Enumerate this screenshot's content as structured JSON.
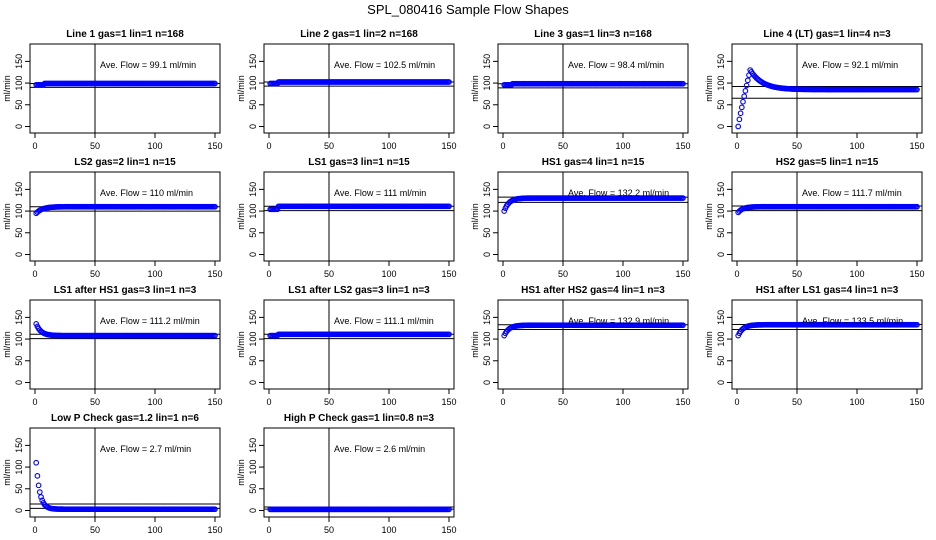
{
  "figure": {
    "title": "SPL_080416  Sample Flow Shapes"
  },
  "style": {
    "point_color": "#0000ff",
    "axis_color": "#000000"
  },
  "chart_data": [
    {
      "type": "scatter",
      "title": "Line 1 gas=1 lin=1 n=168",
      "ylabel": "ml/min",
      "xlim": [
        0,
        150
      ],
      "ylim": [
        -15,
        190
      ],
      "xticks": [
        0,
        50,
        100,
        150
      ],
      "yticks": [
        0,
        50,
        100,
        150
      ],
      "vline": 50,
      "hlines": [
        99.1,
        90
      ],
      "annotation": "Ave. Flow =  99.1  ml/min",
      "shape": "flat",
      "params": [
        99.1,
        96,
        0
      ]
    },
    {
      "type": "scatter",
      "title": "Line 2 gas=1 lin=2 n=168",
      "ylabel": "ml/min",
      "xlim": [
        0,
        150
      ],
      "ylim": [
        -15,
        190
      ],
      "xticks": [
        0,
        50,
        100,
        150
      ],
      "yticks": [
        0,
        50,
        100,
        150
      ],
      "vline": 50,
      "hlines": [
        102.5,
        93
      ],
      "annotation": "Ave. Flow =  102.5  ml/min",
      "shape": "flat",
      "params": [
        102.5,
        99,
        0
      ]
    },
    {
      "type": "scatter",
      "title": "Line 3 gas=1 lin=3 n=168",
      "ylabel": "ml/min",
      "xlim": [
        0,
        150
      ],
      "ylim": [
        -15,
        190
      ],
      "xticks": [
        0,
        50,
        100,
        150
      ],
      "yticks": [
        0,
        50,
        100,
        150
      ],
      "vline": 50,
      "hlines": [
        98.4,
        89
      ],
      "annotation": "Ave. Flow =  98.4  ml/min",
      "shape": "flat",
      "params": [
        98.4,
        96,
        0
      ]
    },
    {
      "type": "scatter",
      "title": "Line 4 (LT) gas=1 lin=4 n=3",
      "ylabel": "ml/min",
      "xlim": [
        0,
        150
      ],
      "ylim": [
        -15,
        190
      ],
      "xticks": [
        0,
        50,
        100,
        150
      ],
      "yticks": [
        0,
        50,
        100,
        150
      ],
      "vline": 50,
      "hlines": [
        92.1,
        65
      ],
      "annotation": "Ave. Flow =  92.1  ml/min",
      "shape": "peak",
      "params": [
        85,
        0,
        130
      ]
    },
    {
      "type": "scatter",
      "title": "LS2 gas=2 lin=1 n=15",
      "ylabel": "ml/min",
      "xlim": [
        0,
        150
      ],
      "ylim": [
        -15,
        190
      ],
      "xticks": [
        0,
        50,
        100,
        150
      ],
      "yticks": [
        0,
        50,
        100,
        150
      ],
      "vline": 50,
      "hlines": [
        110,
        100
      ],
      "annotation": "Ave. Flow =  110  ml/min",
      "shape": "rise",
      "params": [
        110,
        95,
        5
      ]
    },
    {
      "type": "scatter",
      "title": "LS1 gas=3 lin=1 n=15",
      "ylabel": "ml/min",
      "xlim": [
        0,
        150
      ],
      "ylim": [
        -15,
        190
      ],
      "xticks": [
        0,
        50,
        100,
        150
      ],
      "yticks": [
        0,
        50,
        100,
        150
      ],
      "vline": 50,
      "hlines": [
        111,
        101
      ],
      "annotation": "Ave. Flow =  111  ml/min",
      "shape": "flat",
      "params": [
        111,
        104,
        0
      ]
    },
    {
      "type": "scatter",
      "title": "HS1 gas=4 lin=1 n=15",
      "ylabel": "ml/min",
      "xlim": [
        0,
        150
      ],
      "ylim": [
        -15,
        190
      ],
      "xticks": [
        0,
        50,
        100,
        150
      ],
      "yticks": [
        0,
        50,
        100,
        150
      ],
      "vline": 50,
      "hlines": [
        132.2,
        120
      ],
      "annotation": "Ave. Flow =  132.2  ml/min",
      "shape": "rise",
      "params": [
        130,
        100,
        4
      ]
    },
    {
      "type": "scatter",
      "title": "HS2 gas=5 lin=1 n=15",
      "ylabel": "ml/min",
      "xlim": [
        0,
        150
      ],
      "ylim": [
        -15,
        190
      ],
      "xticks": [
        0,
        50,
        100,
        150
      ],
      "yticks": [
        0,
        50,
        100,
        150
      ],
      "vline": 50,
      "hlines": [
        111.7,
        101
      ],
      "annotation": "Ave. Flow =  111.7  ml/min",
      "shape": "rise",
      "params": [
        110,
        97,
        4
      ]
    },
    {
      "type": "scatter",
      "title": "LS1 after HS1 gas=3 lin=1 n=3",
      "ylabel": "ml/min",
      "xlim": [
        0,
        150
      ],
      "ylim": [
        -15,
        190
      ],
      "xticks": [
        0,
        50,
        100,
        150
      ],
      "yticks": [
        0,
        50,
        100,
        150
      ],
      "vline": 50,
      "hlines": [
        111.2,
        101
      ],
      "annotation": "Ave. Flow =  111.2  ml/min",
      "shape": "decay",
      "params": [
        108,
        135,
        4
      ]
    },
    {
      "type": "scatter",
      "title": "LS1 after LS2 gas=3 lin=1 n=3",
      "ylabel": "ml/min",
      "xlim": [
        0,
        150
      ],
      "ylim": [
        -15,
        190
      ],
      "xticks": [
        0,
        50,
        100,
        150
      ],
      "yticks": [
        0,
        50,
        100,
        150
      ],
      "vline": 50,
      "hlines": [
        111.1,
        101
      ],
      "annotation": "Ave. Flow =  111.1  ml/min",
      "shape": "flat",
      "params": [
        111,
        108,
        0
      ]
    },
    {
      "type": "scatter",
      "title": "HS1 after HS2 gas=4 lin=1 n=3",
      "ylabel": "ml/min",
      "xlim": [
        0,
        150
      ],
      "ylim": [
        -15,
        190
      ],
      "xticks": [
        0,
        50,
        100,
        150
      ],
      "yticks": [
        0,
        50,
        100,
        150
      ],
      "vline": 50,
      "hlines": [
        132.9,
        122
      ],
      "annotation": "Ave. Flow =  132.9  ml/min",
      "shape": "rise",
      "params": [
        132,
        108,
        4
      ]
    },
    {
      "type": "scatter",
      "title": "HS1 after LS1 gas=4 lin=1 n=3",
      "ylabel": "ml/min",
      "xlim": [
        0,
        150
      ],
      "ylim": [
        -15,
        190
      ],
      "xticks": [
        0,
        50,
        100,
        150
      ],
      "yticks": [
        0,
        50,
        100,
        150
      ],
      "vline": 50,
      "hlines": [
        133.5,
        122
      ],
      "annotation": "Ave. Flow =  133.5  ml/min",
      "shape": "rise",
      "params": [
        133,
        108,
        4
      ]
    },
    {
      "type": "scatter",
      "title": "Low P Check gas=1.2 lin=1 n=6",
      "ylabel": "ml/min",
      "xlim": [
        0,
        150
      ],
      "ylim": [
        -15,
        190
      ],
      "xticks": [
        0,
        50,
        100,
        150
      ],
      "yticks": [
        0,
        50,
        100,
        150
      ],
      "vline": 50,
      "hlines": [
        15,
        5
      ],
      "annotation": "Ave. Flow =  2.7  ml/min",
      "shape": "decay",
      "params": [
        3,
        110,
        3
      ]
    },
    {
      "type": "scatter",
      "title": "High P Check gas=1 lin=0.8 n=3",
      "ylabel": "ml/min",
      "xlim": [
        0,
        150
      ],
      "ylim": [
        -15,
        190
      ],
      "xticks": [
        0,
        50,
        100,
        150
      ],
      "yticks": [
        0,
        50,
        100,
        150
      ],
      "vline": 50,
      "hlines": [
        8,
        3
      ],
      "annotation": "Ave. Flow =  2.6  ml/min",
      "shape": "flat",
      "params": [
        2.6,
        2.6,
        0
      ]
    }
  ]
}
